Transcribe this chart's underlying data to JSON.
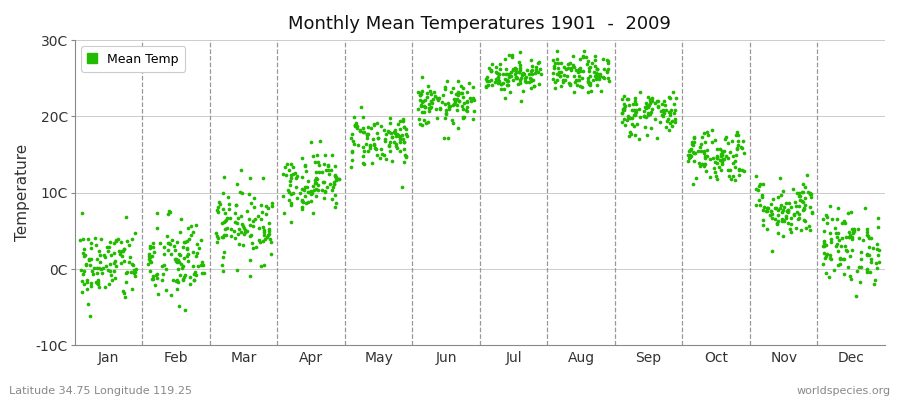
{
  "title": "Monthly Mean Temperatures 1901  -  2009",
  "ylabel": "Temperature",
  "subtitle_left": "Latitude 34.75 Longitude 119.25",
  "subtitle_right": "worldspecies.org",
  "legend_label": "Mean Temp",
  "ylim": [
    -10,
    30
  ],
  "yticks": [
    -10,
    0,
    10,
    20,
    30
  ],
  "ytick_labels": [
    "-10C",
    "0C",
    "10C",
    "20C",
    "30C"
  ],
  "month_labels": [
    "Jan",
    "Feb",
    "Mar",
    "Apr",
    "May",
    "Jun",
    "Jul",
    "Aug",
    "Sep",
    "Oct",
    "Nov",
    "Dec"
  ],
  "dot_color": "#22bb00",
  "background_color": "#f0f0f0",
  "plot_bg_color": "#f5f5f5",
  "monthly_means": [
    0.5,
    1.0,
    6.0,
    11.5,
    17.0,
    21.5,
    25.5,
    25.5,
    20.5,
    15.0,
    8.0,
    3.0
  ],
  "monthly_stds": [
    2.5,
    3.0,
    2.5,
    2.0,
    1.8,
    1.5,
    1.2,
    1.2,
    1.5,
    1.8,
    2.0,
    2.5
  ],
  "n_years": 109,
  "random_seed": 42
}
